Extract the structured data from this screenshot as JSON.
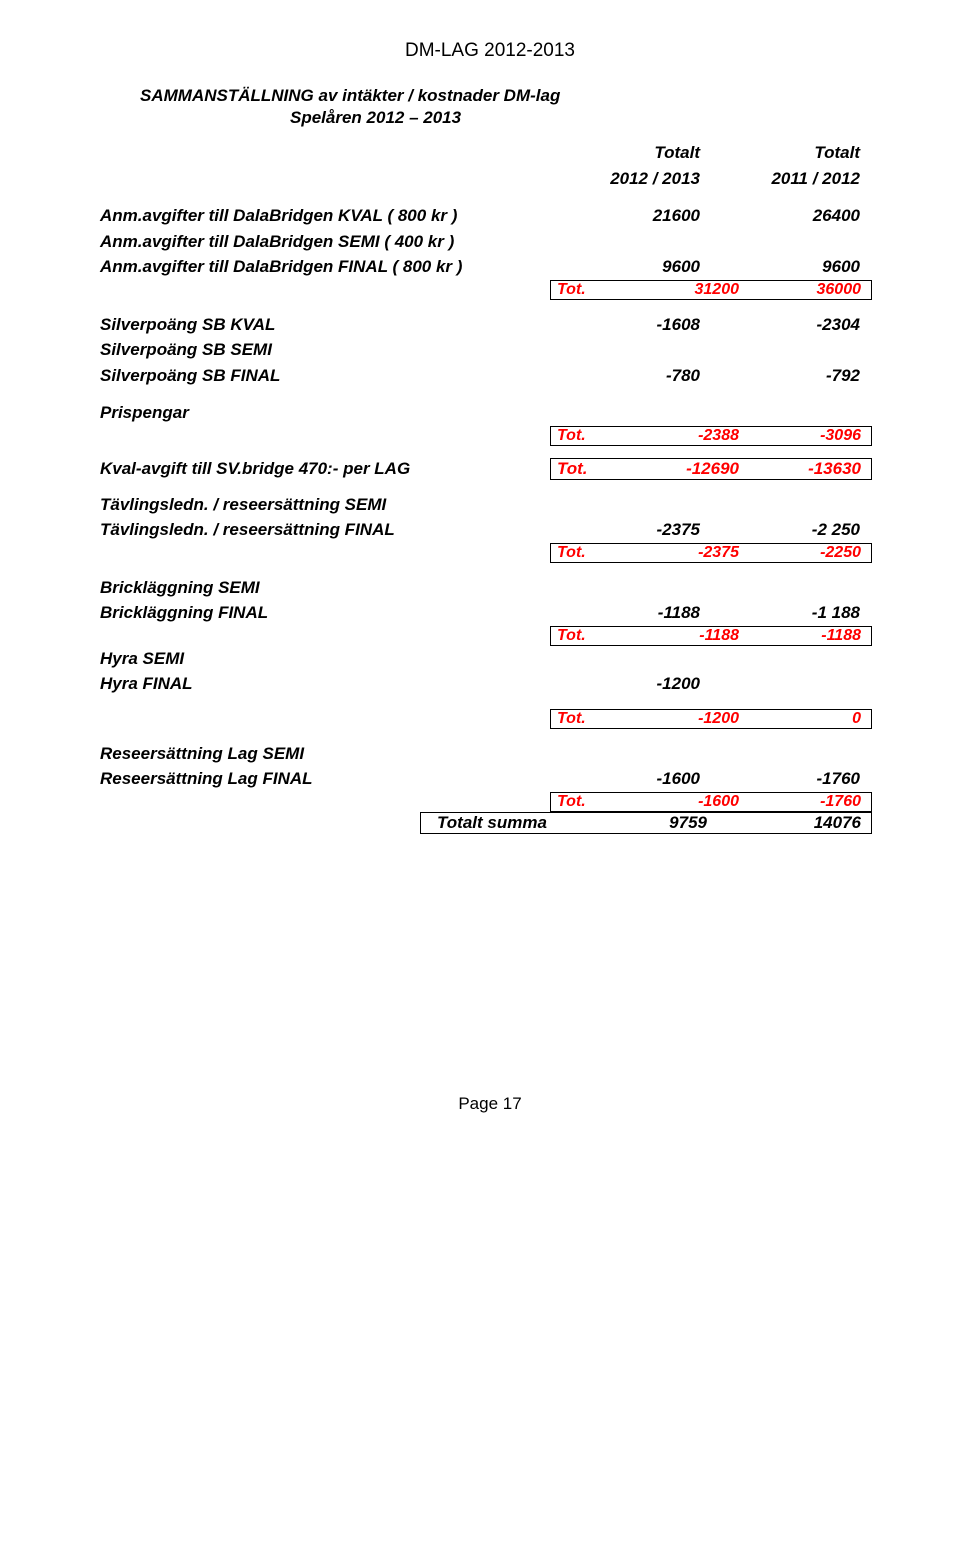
{
  "header": "DM-LAG 2012-2013",
  "title_line1": "SAMMANSTÄLLNING av intäkter / kostnader   DM-lag",
  "title_line2": "Spelåren  2012 – 2013",
  "col_headers": {
    "h1a": "Totalt",
    "h1b": "2012 / 2013",
    "h2a": "Totalt",
    "h2b": "2011 / 2012"
  },
  "tot_label": "Tot.",
  "totalt_summa_label": "Totalt summa",
  "anm": {
    "kval": {
      "label": "Anm.avgifter till DalaBridgen  KVAL   ( 800 kr )",
      "v1": "21600",
      "v2": "26400"
    },
    "semi": {
      "label": "Anm.avgifter till DalaBridgen  SEMI   ( 400 kr )"
    },
    "final": {
      "label": "Anm.avgifter till DalaBridgen  FINAL  ( 800 kr )",
      "v1": "9600",
      "v2": "9600"
    },
    "tot": {
      "v1": "31200",
      "v2": "36000"
    }
  },
  "silver": {
    "kval": {
      "label": "Silverpoäng  SB    KVAL",
      "v1": "-1608",
      "v2": "-2304"
    },
    "semi": {
      "label": "Silverpoäng  SB    SEMI"
    },
    "final": {
      "label": "Silverpoäng  SB    FINAL",
      "v1": "-780",
      "v2": "-792"
    }
  },
  "prispengar": {
    "label": "Prispengar",
    "tot": {
      "v1": "-2388",
      "v2": "-3096"
    }
  },
  "kvalavgift": {
    "label": "Kval-avgift till SV.bridge  470:-  per LAG",
    "tot": {
      "v1": "-12690",
      "v2": "-13630"
    }
  },
  "tavling": {
    "semi": {
      "label": "Tävlingsledn. / reseersättning    SEMI"
    },
    "final": {
      "label": "Tävlingsledn. / reseersättning    FINAL",
      "v1": "-2375",
      "v2": "-2 250"
    },
    "tot": {
      "v1": "-2375",
      "v2": "-2250"
    }
  },
  "brick": {
    "semi": {
      "label": "Brickläggning    SEMI"
    },
    "final": {
      "label": "Brickläggning    FINAL",
      "v1": "-1188",
      "v2": "-1 188"
    },
    "tot": {
      "v1": "-1188",
      "v2": "-1188"
    }
  },
  "hyra": {
    "semi": {
      "label": "Hyra    SEMI"
    },
    "final": {
      "label": "Hyra    FINAL",
      "v1": "-1200"
    },
    "tot": {
      "v1": "-1200",
      "v2": "0"
    }
  },
  "rese": {
    "semi": {
      "label": "Reseersättning  Lag    SEMI"
    },
    "final": {
      "label": "Reseersättning  Lag    FINAL",
      "v1": "-1600",
      "v2": "-1760"
    },
    "tot": {
      "v1": "-1600",
      "v2": "-1760"
    }
  },
  "grand_total": {
    "v1": "9759",
    "v2": "14076"
  },
  "footer": "Page 17"
}
